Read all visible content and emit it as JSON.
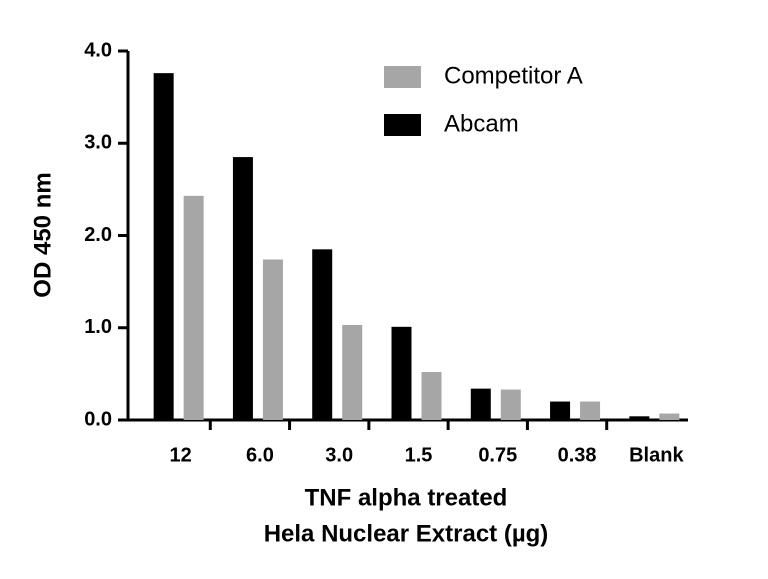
{
  "chart_data": {
    "type": "bar",
    "categories": [
      "12",
      "6.0",
      "3.0",
      "1.5",
      "0.75",
      "0.38",
      "Blank"
    ],
    "series": [
      {
        "name": "Competitor A",
        "color": "#a6a6a6",
        "values": [
          2.43,
          1.74,
          1.03,
          0.52,
          0.33,
          0.2,
          0.07
        ]
      },
      {
        "name": "Abcam",
        "color": "#000000",
        "values": [
          3.76,
          2.85,
          1.85,
          1.01,
          0.34,
          0.2,
          0.04
        ]
      }
    ],
    "y_label": "OD 450 nm",
    "x_label": [
      "TNF alpha treated",
      "Hela Nuclear Extract (µg)"
    ],
    "ylim": [
      0,
      4
    ],
    "yticks": [
      {
        "value": 0,
        "label": "0.0"
      },
      {
        "value": 1,
        "label": "1.0"
      },
      {
        "value": 2,
        "label": "2.0"
      },
      {
        "value": 3,
        "label": "3.0"
      },
      {
        "value": 4,
        "label": "4.0"
      }
    ],
    "legend": "top-right"
  }
}
